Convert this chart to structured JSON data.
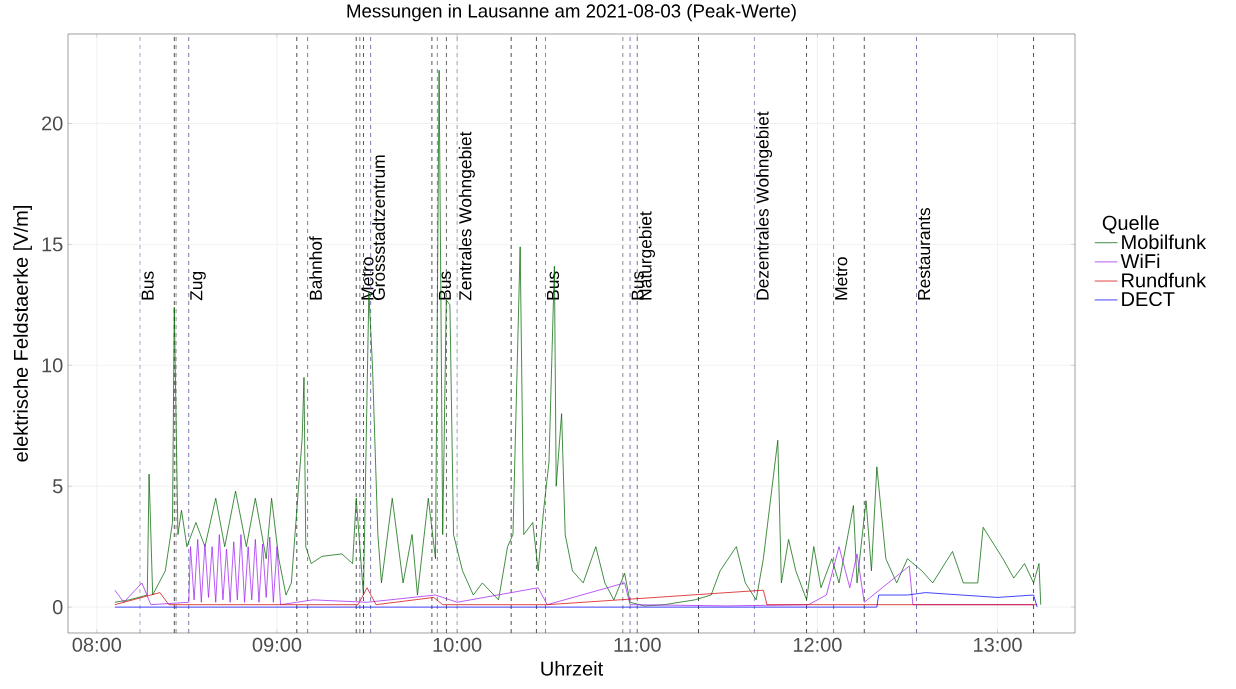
{
  "chart_data": {
    "type": "line",
    "title": "Messungen in Lausanne am 2021-08-03 (Peak-Werte)",
    "xlabel": "Uhrzeit",
    "ylabel": "elektrische Feldstaerke [V/m]",
    "legend_title": "Quelle",
    "legend": "right",
    "grid": true,
    "xlim": [
      7.84,
      13.43
    ],
    "ylim": [
      -1.07,
      23.7
    ],
    "xticks": [
      {
        "value": 8,
        "label": "08:00"
      },
      {
        "value": 9,
        "label": "09:00"
      },
      {
        "value": 10,
        "label": "10:00"
      },
      {
        "value": 11,
        "label": "11:00"
      },
      {
        "value": 12,
        "label": "12:00"
      },
      {
        "value": 13,
        "label": "13:00"
      }
    ],
    "yticks": [
      0,
      5,
      10,
      15,
      20
    ],
    "series": [
      {
        "name": "Mobilfunk",
        "color": "#006400",
        "x": [
          8.1,
          8.18,
          8.28,
          8.29,
          8.31,
          8.38,
          8.42,
          8.43,
          8.45,
          8.47,
          8.5,
          8.55,
          8.6,
          8.66,
          8.71,
          8.77,
          8.83,
          8.88,
          8.94,
          8.97,
          9.01,
          9.05,
          9.08,
          9.14,
          9.15,
          9.16,
          9.19,
          9.25,
          9.36,
          9.42,
          9.44,
          9.48,
          9.51,
          9.53,
          9.56,
          9.58,
          9.64,
          9.7,
          9.75,
          9.78,
          9.84,
          9.88,
          9.9,
          9.92,
          9.94,
          9.96,
          9.98,
          10.03,
          10.09,
          10.14,
          10.23,
          10.28,
          10.31,
          10.35,
          10.37,
          10.42,
          10.45,
          10.48,
          10.51,
          10.54,
          10.55,
          10.58,
          10.6,
          10.64,
          10.7,
          10.77,
          10.82,
          10.87,
          10.93,
          10.96,
          11.04,
          11.15,
          11.32,
          11.41,
          11.46,
          11.55,
          11.6,
          11.66,
          11.7,
          11.78,
          11.8,
          11.84,
          11.88,
          11.94,
          11.98,
          12.02,
          12.08,
          12.12,
          12.2,
          12.22,
          12.27,
          12.3,
          12.33,
          12.38,
          12.44,
          12.5,
          12.58,
          12.64,
          12.75,
          12.81,
          12.89,
          12.92,
          13.03,
          13.09,
          13.15,
          13.2,
          13.23,
          13.24
        ],
        "values": [
          0.2,
          0.3,
          0.5,
          5.5,
          0.5,
          1.5,
          3.5,
          12.4,
          3.0,
          4.0,
          2.5,
          3.5,
          2.5,
          4.5,
          2.5,
          4.8,
          2.5,
          4.5,
          2.0,
          4.5,
          2.0,
          0.5,
          1.0,
          7.0,
          9.5,
          2.5,
          1.8,
          2.1,
          2.2,
          1.8,
          4.5,
          0.5,
          13.0,
          10.0,
          3.0,
          1.0,
          4.5,
          1.0,
          3.0,
          0.5,
          4.5,
          2.0,
          22.2,
          3.0,
          12.7,
          12.5,
          3.0,
          1.5,
          0.5,
          1.0,
          0.3,
          2.5,
          3.0,
          14.9,
          3.0,
          3.5,
          1.5,
          4.0,
          6.0,
          14.1,
          5.0,
          8.0,
          3.0,
          1.5,
          1.0,
          2.5,
          1.0,
          0.3,
          1.4,
          0.2,
          0.05,
          0.1,
          0.3,
          0.5,
          1.5,
          2.5,
          1.0,
          0.3,
          2.0,
          6.9,
          1.0,
          2.8,
          1.5,
          0.3,
          2.5,
          0.8,
          2.0,
          1.0,
          4.2,
          1.0,
          4.4,
          1.5,
          5.8,
          2.0,
          1.0,
          2.0,
          1.5,
          1.0,
          2.3,
          1.0,
          1.0,
          3.3,
          2.0,
          1.2,
          1.8,
          1.0,
          1.8,
          0.1
        ]
      },
      {
        "name": "WiFi",
        "color": "#a020f0",
        "x": [
          8.1,
          8.15,
          8.25,
          8.3,
          8.51,
          8.52,
          8.54,
          8.56,
          8.58,
          8.6,
          8.62,
          8.64,
          8.66,
          8.68,
          8.7,
          8.72,
          8.74,
          8.76,
          8.78,
          8.8,
          8.82,
          8.84,
          8.86,
          8.88,
          8.9,
          8.92,
          8.94,
          8.96,
          8.98,
          9.0,
          9.02,
          9.2,
          9.5,
          9.88,
          10.0,
          10.45,
          10.5,
          10.93,
          10.96,
          11.5,
          11.95,
          12.05,
          12.12,
          12.18,
          12.22,
          12.26,
          12.51,
          12.53,
          13.2
        ],
        "values": [
          0.7,
          0.2,
          1.0,
          0.1,
          0.2,
          2.5,
          0.3,
          2.8,
          0.2,
          2.6,
          0.4,
          2.5,
          0.2,
          3.0,
          0.3,
          2.4,
          0.2,
          2.7,
          0.3,
          3.0,
          0.2,
          2.5,
          0.3,
          2.8,
          0.2,
          2.6,
          0.4,
          2.9,
          0.2,
          2.5,
          0.1,
          0.3,
          0.2,
          0.5,
          0.2,
          0.8,
          0.1,
          1.0,
          0.1,
          0.05,
          0.1,
          0.5,
          2.5,
          0.8,
          2.2,
          0.2,
          1.7,
          0.1,
          0.1
        ]
      },
      {
        "name": "Rundfunk",
        "color": "#d40000",
        "x": [
          8.1,
          8.35,
          8.4,
          9.0,
          9.45,
          9.5,
          9.55,
          9.87,
          9.92,
          10.5,
          11.7,
          11.72,
          12.3,
          13.22
        ],
        "values": [
          0.1,
          0.6,
          0.1,
          0.1,
          0.1,
          0.8,
          0.1,
          0.4,
          0.1,
          0.1,
          0.7,
          0.1,
          0.1,
          0.1
        ]
      },
      {
        "name": "DECT",
        "color": "#0000ff",
        "x": [
          8.1,
          12.33,
          12.34,
          12.5,
          12.6,
          12.8,
          13.0,
          13.2,
          13.22
        ],
        "values": [
          0.0,
          0.0,
          0.5,
          0.5,
          0.6,
          0.5,
          0.4,
          0.5,
          0.0
        ]
      }
    ],
    "ref_lines": [
      {
        "axis": "x",
        "value": 8.24,
        "label": "Bus",
        "color": "#55559a",
        "line_style": "dashed"
      },
      {
        "axis": "x",
        "value": 8.43,
        "color": "#222222",
        "line_style": "dashed"
      },
      {
        "axis": "x",
        "value": 8.44,
        "color": "#222222",
        "line_style": "dashed"
      },
      {
        "axis": "x",
        "value": 8.51,
        "label": "Zug",
        "color": "#55559a",
        "line_style": "dashed"
      },
      {
        "axis": "x",
        "value": 9.11,
        "color": "#222222",
        "line_style": "dashed"
      },
      {
        "axis": "x",
        "value": 9.17,
        "label": "Bahnhof",
        "color": "#55559a",
        "line_style": "dashed"
      },
      {
        "axis": "x",
        "value": 9.44,
        "color": "#222222",
        "line_style": "dashed"
      },
      {
        "axis": "x",
        "value": 9.46,
        "label": "Metro",
        "color": "#55559a",
        "line_style": "dashed"
      },
      {
        "axis": "x",
        "value": 9.48,
        "color": "#222222",
        "line_style": "dashed"
      },
      {
        "axis": "x",
        "value": 9.52,
        "label": "Grossstadtzentrum",
        "color": "#55559a",
        "line_style": "dashed"
      },
      {
        "axis": "x",
        "value": 9.86,
        "color": "#222222",
        "line_style": "dashed"
      },
      {
        "axis": "x",
        "value": 9.89,
        "label": "Bus",
        "color": "#55559a",
        "line_style": "dashed"
      },
      {
        "axis": "x",
        "value": 9.94,
        "color": "#222222",
        "line_style": "dashed"
      },
      {
        "axis": "x",
        "value": 10.0,
        "label": "Zentrales Wohngebiet",
        "color": "#55559a",
        "line_style": "dashed"
      },
      {
        "axis": "x",
        "value": 10.3,
        "color": "#222222",
        "line_style": "dashed"
      },
      {
        "axis": "x",
        "value": 10.44,
        "color": "#222222",
        "line_style": "dashed"
      },
      {
        "axis": "x",
        "value": 10.49,
        "label": "Bus",
        "color": "#55559a",
        "line_style": "dashed"
      },
      {
        "axis": "x",
        "value": 10.92,
        "color": "#222222",
        "line_style": "dashed"
      },
      {
        "axis": "x",
        "value": 10.96,
        "label": "Bus",
        "color": "#55559a",
        "line_style": "dashed"
      },
      {
        "axis": "x",
        "value": 11.0,
        "label": "Naturgebiet",
        "color": "#55559a",
        "line_style": "dashed"
      },
      {
        "axis": "x",
        "value": 11.34,
        "color": "#222222",
        "line_style": "dashed"
      },
      {
        "axis": "x",
        "value": 11.65,
        "label": "Dezentrales Wohngebiet",
        "color": "#55559a",
        "line_style": "dashed"
      },
      {
        "axis": "x",
        "value": 11.94,
        "color": "#222222",
        "line_style": "dashed"
      },
      {
        "axis": "x",
        "value": 12.09,
        "label": "Metro",
        "color": "#55559a",
        "line_style": "dashed"
      },
      {
        "axis": "x",
        "value": 12.26,
        "color": "#222222",
        "line_style": "dashed"
      },
      {
        "axis": "x",
        "value": 12.55,
        "label": "Restaurants",
        "color": "#55559a",
        "line_style": "dashed"
      },
      {
        "axis": "x",
        "value": 13.2,
        "color": "#222222",
        "line_style": "dashed"
      }
    ]
  }
}
